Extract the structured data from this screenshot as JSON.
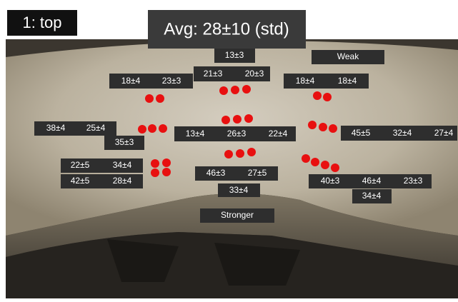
{
  "header": {
    "label": "1: top",
    "title": "Avg: 28±10 (std)"
  },
  "annotations": {
    "weak": "Weak",
    "stronger": "Stronger"
  },
  "values": [
    "13±3",
    "18±4",
    "23±3",
    "21±3",
    "20±3",
    "18±4",
    "18±4",
    "38±4",
    "25±4",
    "35±3",
    "13±4",
    "26±3",
    "22±4",
    "45±5",
    "32±4",
    "27±4",
    "22±5",
    "34±4",
    "42±5",
    "28±4",
    "46±3",
    "27±5",
    "33±4",
    "40±3",
    "46±4",
    "23±3",
    "34±4"
  ]
}
